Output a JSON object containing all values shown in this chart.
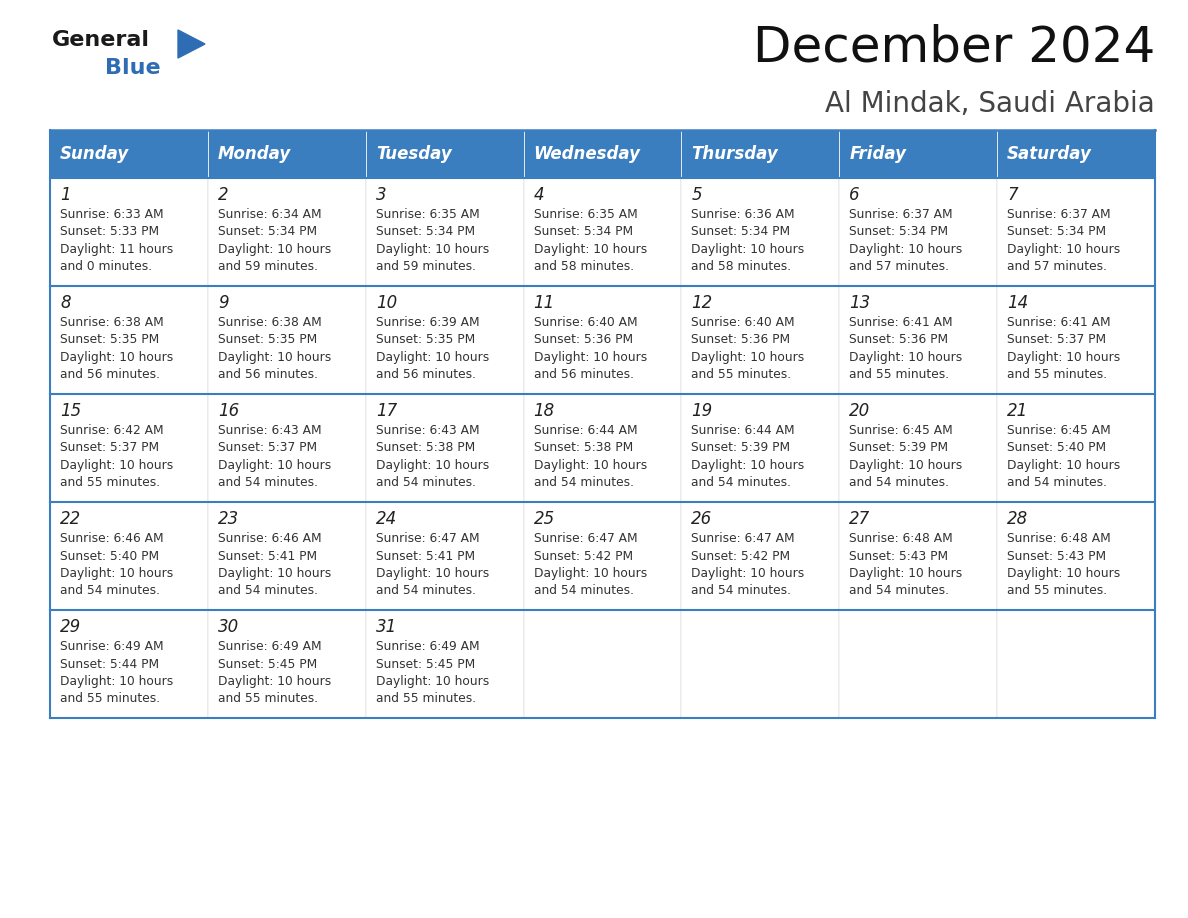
{
  "title": "December 2024",
  "subtitle": "Al Mindak, Saudi Arabia",
  "header_color": "#3a7ebf",
  "header_text_color": "#ffffff",
  "border_color": "#3a7ebf",
  "days_of_week": [
    "Sunday",
    "Monday",
    "Tuesday",
    "Wednesday",
    "Thursday",
    "Friday",
    "Saturday"
  ],
  "calendar_data": [
    [
      {
        "day": 1,
        "sunrise": "6:33 AM",
        "sunset": "5:33 PM",
        "daylight_hours": 11,
        "daylight_minutes": 0
      },
      {
        "day": 2,
        "sunrise": "6:34 AM",
        "sunset": "5:34 PM",
        "daylight_hours": 10,
        "daylight_minutes": 59
      },
      {
        "day": 3,
        "sunrise": "6:35 AM",
        "sunset": "5:34 PM",
        "daylight_hours": 10,
        "daylight_minutes": 59
      },
      {
        "day": 4,
        "sunrise": "6:35 AM",
        "sunset": "5:34 PM",
        "daylight_hours": 10,
        "daylight_minutes": 58
      },
      {
        "day": 5,
        "sunrise": "6:36 AM",
        "sunset": "5:34 PM",
        "daylight_hours": 10,
        "daylight_minutes": 58
      },
      {
        "day": 6,
        "sunrise": "6:37 AM",
        "sunset": "5:34 PM",
        "daylight_hours": 10,
        "daylight_minutes": 57
      },
      {
        "day": 7,
        "sunrise": "6:37 AM",
        "sunset": "5:34 PM",
        "daylight_hours": 10,
        "daylight_minutes": 57
      }
    ],
    [
      {
        "day": 8,
        "sunrise": "6:38 AM",
        "sunset": "5:35 PM",
        "daylight_hours": 10,
        "daylight_minutes": 56
      },
      {
        "day": 9,
        "sunrise": "6:38 AM",
        "sunset": "5:35 PM",
        "daylight_hours": 10,
        "daylight_minutes": 56
      },
      {
        "day": 10,
        "sunrise": "6:39 AM",
        "sunset": "5:35 PM",
        "daylight_hours": 10,
        "daylight_minutes": 56
      },
      {
        "day": 11,
        "sunrise": "6:40 AM",
        "sunset": "5:36 PM",
        "daylight_hours": 10,
        "daylight_minutes": 56
      },
      {
        "day": 12,
        "sunrise": "6:40 AM",
        "sunset": "5:36 PM",
        "daylight_hours": 10,
        "daylight_minutes": 55
      },
      {
        "day": 13,
        "sunrise": "6:41 AM",
        "sunset": "5:36 PM",
        "daylight_hours": 10,
        "daylight_minutes": 55
      },
      {
        "day": 14,
        "sunrise": "6:41 AM",
        "sunset": "5:37 PM",
        "daylight_hours": 10,
        "daylight_minutes": 55
      }
    ],
    [
      {
        "day": 15,
        "sunrise": "6:42 AM",
        "sunset": "5:37 PM",
        "daylight_hours": 10,
        "daylight_minutes": 55
      },
      {
        "day": 16,
        "sunrise": "6:43 AM",
        "sunset": "5:37 PM",
        "daylight_hours": 10,
        "daylight_minutes": 54
      },
      {
        "day": 17,
        "sunrise": "6:43 AM",
        "sunset": "5:38 PM",
        "daylight_hours": 10,
        "daylight_minutes": 54
      },
      {
        "day": 18,
        "sunrise": "6:44 AM",
        "sunset": "5:38 PM",
        "daylight_hours": 10,
        "daylight_minutes": 54
      },
      {
        "day": 19,
        "sunrise": "6:44 AM",
        "sunset": "5:39 PM",
        "daylight_hours": 10,
        "daylight_minutes": 54
      },
      {
        "day": 20,
        "sunrise": "6:45 AM",
        "sunset": "5:39 PM",
        "daylight_hours": 10,
        "daylight_minutes": 54
      },
      {
        "day": 21,
        "sunrise": "6:45 AM",
        "sunset": "5:40 PM",
        "daylight_hours": 10,
        "daylight_minutes": 54
      }
    ],
    [
      {
        "day": 22,
        "sunrise": "6:46 AM",
        "sunset": "5:40 PM",
        "daylight_hours": 10,
        "daylight_minutes": 54
      },
      {
        "day": 23,
        "sunrise": "6:46 AM",
        "sunset": "5:41 PM",
        "daylight_hours": 10,
        "daylight_minutes": 54
      },
      {
        "day": 24,
        "sunrise": "6:47 AM",
        "sunset": "5:41 PM",
        "daylight_hours": 10,
        "daylight_minutes": 54
      },
      {
        "day": 25,
        "sunrise": "6:47 AM",
        "sunset": "5:42 PM",
        "daylight_hours": 10,
        "daylight_minutes": 54
      },
      {
        "day": 26,
        "sunrise": "6:47 AM",
        "sunset": "5:42 PM",
        "daylight_hours": 10,
        "daylight_minutes": 54
      },
      {
        "day": 27,
        "sunrise": "6:48 AM",
        "sunset": "5:43 PM",
        "daylight_hours": 10,
        "daylight_minutes": 54
      },
      {
        "day": 28,
        "sunrise": "6:48 AM",
        "sunset": "5:43 PM",
        "daylight_hours": 10,
        "daylight_minutes": 55
      }
    ],
    [
      {
        "day": 29,
        "sunrise": "6:49 AM",
        "sunset": "5:44 PM",
        "daylight_hours": 10,
        "daylight_minutes": 55
      },
      {
        "day": 30,
        "sunrise": "6:49 AM",
        "sunset": "5:45 PM",
        "daylight_hours": 10,
        "daylight_minutes": 55
      },
      {
        "day": 31,
        "sunrise": "6:49 AM",
        "sunset": "5:45 PM",
        "daylight_hours": 10,
        "daylight_minutes": 55
      },
      null,
      null,
      null,
      null
    ]
  ],
  "logo_general_color": "#1a1a1a",
  "logo_blue_color": "#2e6db4",
  "title_fontsize": 36,
  "subtitle_fontsize": 20,
  "header_fontsize": 12,
  "day_number_fontsize": 12,
  "cell_text_fontsize": 8.8
}
